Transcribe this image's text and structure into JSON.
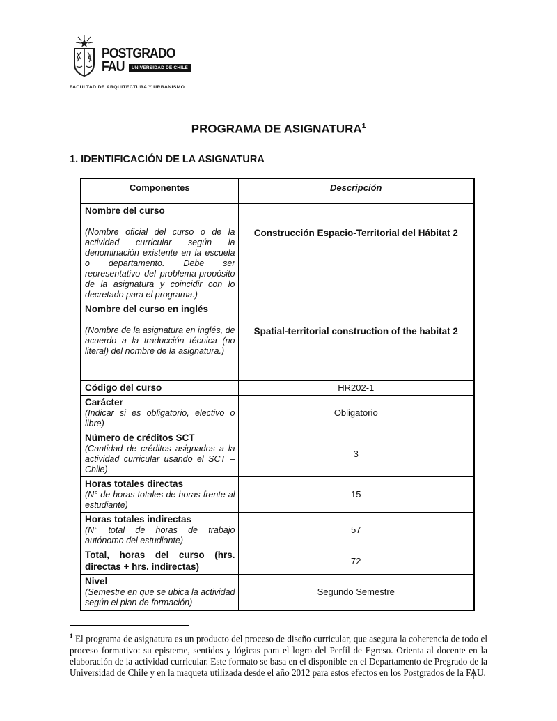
{
  "page": {
    "title": "PROGRAMA DE ASIGNATURA",
    "title_footnote_ref": "1",
    "section_heading": "1. IDENTIFICACIÓN DE LA ASIGNATURA",
    "page_number": "1"
  },
  "logo": {
    "crest_icon": "university-of-chile-crest-icon",
    "line1": "POSTGRADO",
    "line2": "FAU",
    "badge": "UNIVERSIDAD DE CHILE",
    "subtitle": "FACULTAD DE ARQUITECTURA Y URBANISMO"
  },
  "table": {
    "headers": [
      "Componentes",
      "Descripción"
    ],
    "rows": [
      {
        "component_title": "Nombre del curso",
        "component_note": "(Nombre oficial del curso o de la actividad curricular según la denominación existente en la escuela o departamento. Debe ser representativo del problema-propósito de la asignatura y coincidir con lo decretado para el programa.)",
        "note_gap": true,
        "value": "Construcción Espacio-Territorial del Hábitat 2",
        "value_bold": true
      },
      {
        "component_title": "Nombre del curso en inglés",
        "component_note": "(Nombre de la asignatura en inglés, de acuerdo a la traducción técnica (no literal) del nombre de la asignatura.)",
        "note_gap": true,
        "value": "Spatial-territorial construction of the habitat 2",
        "value_bold": true
      },
      {
        "component_title": "Código del curso",
        "component_note": "",
        "note_gap": false,
        "value": "HR202-1",
        "value_bold": false
      },
      {
        "component_title": "Carácter",
        "component_note": "(Indicar si es obligatorio, electivo o libre)",
        "note_gap": false,
        "value": "Obligatorio",
        "value_bold": false
      },
      {
        "component_title": "Número de créditos SCT",
        "component_note": "(Cantidad de créditos asignados a la actividad curricular usando el SCT – Chile)",
        "note_gap": false,
        "value": "3",
        "value_bold": false
      },
      {
        "component_title": "Horas totales directas",
        "component_note": "(N° de horas totales de horas frente al estudiante)",
        "note_gap": false,
        "value": "15",
        "value_bold": false
      },
      {
        "component_title": "Horas totales indirectas",
        "component_note": "(N° total de horas de trabajo autónomo del estudiante)",
        "note_gap": false,
        "value": "57",
        "value_bold": false
      },
      {
        "component_title": "Total, horas del curso (hrs. directas + hrs. indirectas)",
        "component_note": "",
        "note_gap": false,
        "value": "72",
        "value_bold": false
      },
      {
        "component_title": "Nivel",
        "component_note": "(Semestre en que se ubica la actividad según el plan de formación)",
        "note_gap": false,
        "value": "Segundo Semestre",
        "value_bold": false
      }
    ]
  },
  "footnote": {
    "marker": "1",
    "text": "El programa de asignatura es un producto del proceso de diseño curricular, que asegura la coherencia de todo el proceso formativo: su episteme, sentidos y lógicas para el logro del Perfil de Egreso. Orienta al docente en la elaboración de la actividad curricular. Este formato se basa en el disponible en el Departamento de Pregrado de la Universidad de Chile y en la maqueta utilizada desde el año 2012 para estos efectos en los Postgrados de la FAU."
  }
}
